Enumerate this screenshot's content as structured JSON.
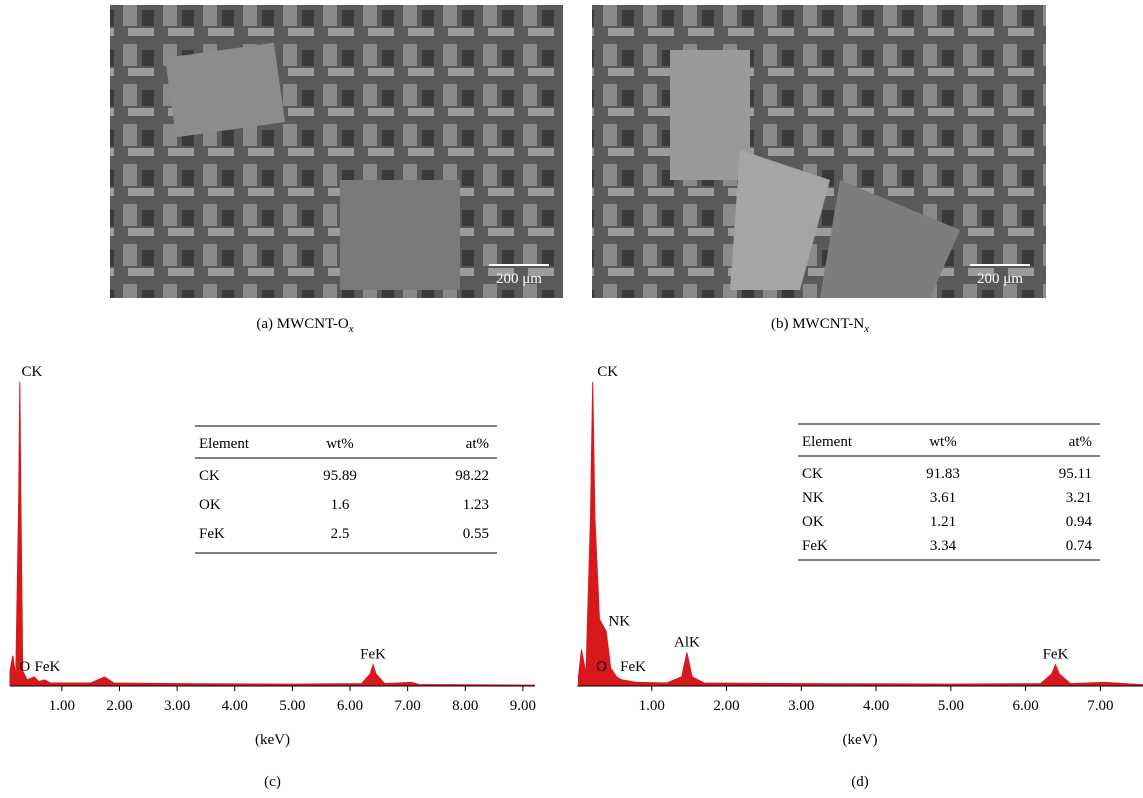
{
  "panels": [
    {
      "caption_label": "(a)",
      "caption_text": "MWCNT-O",
      "caption_sub": "x",
      "scale_bar": "200 μm"
    },
    {
      "caption_label": "(b)",
      "caption_text": "MWCNT-N",
      "caption_sub": "x",
      "scale_bar": "200 μm"
    }
  ],
  "chart_data": [
    {
      "type": "area",
      "caption": "(c)",
      "xlabel": "(keV)",
      "color": "#d7191c",
      "xlim": [
        0.1,
        9.21
      ],
      "ylim": [
        0,
        100
      ],
      "xticks": [
        {
          "value": 1,
          "label": "1.00"
        },
        {
          "value": 2,
          "label": "2.00"
        },
        {
          "value": 3,
          "label": "3.00"
        },
        {
          "value": 4,
          "label": "4.00"
        },
        {
          "value": 5,
          "label": "5.00"
        },
        {
          "value": 6,
          "label": "6.00"
        },
        {
          "value": 7,
          "label": "7.00"
        },
        {
          "value": 8,
          "label": "8.00"
        },
        {
          "value": 9,
          "label": "9.00"
        }
      ],
      "x": [
        0.1,
        0.15,
        0.2,
        0.25,
        0.27,
        0.29,
        0.32,
        0.4,
        0.52,
        0.6,
        0.7,
        0.8,
        1.0,
        1.5,
        1.74,
        1.9,
        3,
        5,
        6.2,
        6.35,
        6.4,
        6.45,
        6.6,
        7.06,
        7.2,
        9.2
      ],
      "values": [
        5,
        10,
        3,
        60,
        100,
        60,
        5,
        2,
        3,
        1.5,
        2,
        1,
        1,
        1,
        3,
        1,
        0.8,
        0.6,
        0.8,
        4,
        7,
        4,
        0.8,
        1.2,
        0.5,
        0.3
      ],
      "annotations": [
        {
          "text": "CK",
          "x": 0.3,
          "y": 100
        },
        {
          "text": "O",
          "x": 0.45,
          "y": 3
        },
        {
          "text": "FeK",
          "x": 0.75,
          "y": 3
        },
        {
          "text": "FeK",
          "x": 6.4,
          "y": 7
        }
      ],
      "table": {
        "columns": [
          "Element",
          "wt%",
          "at%"
        ],
        "rows": [
          [
            "CK",
            "95.89",
            "98.22"
          ],
          [
            "OK",
            "1.6",
            "1.23"
          ],
          [
            "FeK",
            "2.5",
            "0.55"
          ]
        ]
      }
    },
    {
      "type": "area",
      "caption": "(d)",
      "xlabel": "(keV)",
      "color": "#d7191c",
      "xlim": [
        0,
        7.57
      ],
      "ylim": [
        0,
        100
      ],
      "xticks": [
        {
          "value": 1,
          "label": "1.00"
        },
        {
          "value": 2,
          "label": "2.00"
        },
        {
          "value": 3,
          "label": "3.00"
        },
        {
          "value": 4,
          "label": "4.00"
        },
        {
          "value": 5,
          "label": "5.00"
        },
        {
          "value": 6,
          "label": "6.00"
        },
        {
          "value": 7,
          "label": "7.00"
        }
      ],
      "x": [
        0.02,
        0.06,
        0.12,
        0.18,
        0.21,
        0.24,
        0.3,
        0.39,
        0.45,
        0.53,
        0.6,
        0.8,
        1.2,
        1.4,
        1.47,
        1.54,
        1.7,
        3,
        5,
        6.2,
        6.35,
        6.4,
        6.45,
        6.6,
        7.06,
        7.57
      ],
      "values": [
        3,
        12,
        4,
        55,
        100,
        55,
        22,
        18,
        6,
        3,
        2,
        1.2,
        1,
        3,
        11,
        3,
        1,
        0.8,
        0.6,
        0.8,
        4,
        7,
        4,
        0.8,
        1.2,
        0.4
      ],
      "annotations": [
        {
          "text": "CK",
          "x": 0.27,
          "y": 100
        },
        {
          "text": "NK",
          "x": 0.42,
          "y": 18
        },
        {
          "text": "O",
          "x": 0.4,
          "y": 3
        },
        {
          "text": "FeK",
          "x": 0.75,
          "y": 3
        },
        {
          "text": "AlK",
          "x": 1.47,
          "y": 11
        },
        {
          "text": "FeK",
          "x": 6.4,
          "y": 7
        }
      ],
      "table": {
        "columns": [
          "Element",
          "wt%",
          "at%"
        ],
        "rows": [
          [
            "CK",
            "91.83",
            "95.11"
          ],
          [
            "NK",
            "3.61",
            "3.21"
          ],
          [
            "OK",
            "1.21",
            "0.94"
          ],
          [
            "FeK",
            "3.34",
            "0.74"
          ]
        ]
      }
    }
  ]
}
